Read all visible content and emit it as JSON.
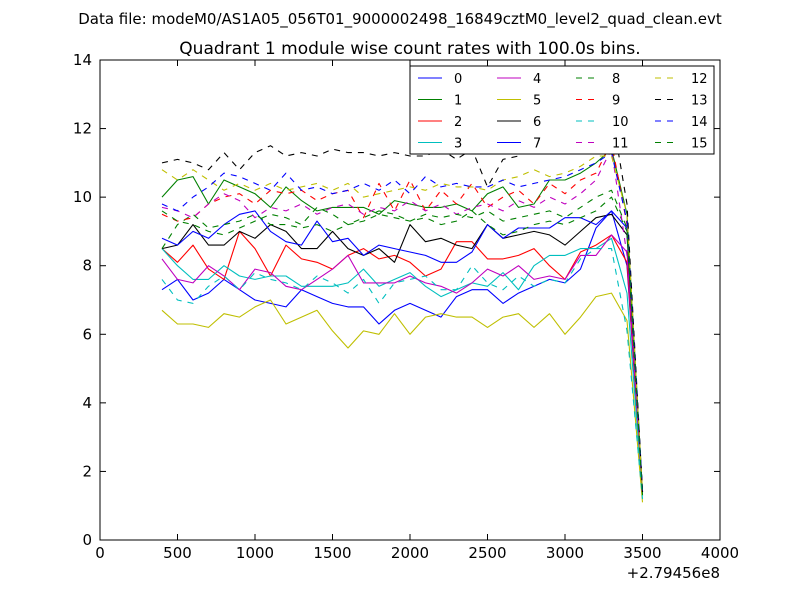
{
  "chart_data": {
    "type": "line",
    "suptitle": "Data file: modeM0/AS1A05_056T01_9000002498_16849cztM0_level2_quad_clean.evt",
    "title": "Quadrant 1 module wise count rates with 100.0s bins.",
    "xlabel": "",
    "ylabel": "",
    "x_offset_label": "+2.79456e8",
    "xlim": [
      0,
      4000
    ],
    "ylim": [
      0,
      14
    ],
    "xticks": [
      0,
      500,
      1000,
      1500,
      2000,
      2500,
      3000,
      3500,
      4000
    ],
    "yticks": [
      0,
      2,
      4,
      6,
      8,
      10,
      12,
      14
    ],
    "legend_position": "top-right",
    "x": [
      400,
      500,
      600,
      700,
      800,
      900,
      1000,
      1100,
      1200,
      1300,
      1400,
      1500,
      1600,
      1700,
      1800,
      1900,
      2000,
      2100,
      2200,
      2300,
      2400,
      2500,
      2600,
      2700,
      2800,
      2900,
      3000,
      3100,
      3200,
      3300,
      3400,
      3500
    ],
    "series": [
      {
        "name": "0",
        "color": "#0000ff",
        "dash": "solid",
        "values": [
          7.3,
          7.6,
          7.0,
          7.2,
          7.6,
          7.3,
          7.0,
          6.9,
          6.8,
          7.3,
          7.1,
          6.9,
          6.8,
          6.8,
          6.3,
          6.7,
          6.9,
          6.7,
          6.5,
          7.1,
          7.3,
          7.3,
          6.9,
          7.2,
          7.4,
          7.6,
          7.5,
          7.9,
          9.1,
          9.6,
          8.0,
          1.3
        ]
      },
      {
        "name": "1",
        "color": "#008000",
        "dash": "solid",
        "values": [
          10.0,
          10.5,
          10.6,
          9.8,
          10.5,
          10.3,
          10.1,
          9.7,
          10.3,
          9.9,
          9.6,
          9.7,
          9.7,
          9.7,
          9.5,
          9.9,
          9.8,
          9.7,
          9.7,
          9.8,
          9.6,
          10.1,
          10.3,
          9.7,
          9.8,
          10.5,
          10.5,
          10.7,
          11.0,
          11.4,
          9.5,
          1.4
        ]
      },
      {
        "name": "2",
        "color": "#ff0000",
        "dash": "solid",
        "values": [
          8.5,
          8.1,
          8.6,
          7.9,
          7.6,
          9.0,
          8.5,
          7.7,
          8.6,
          8.2,
          8.1,
          7.9,
          8.3,
          8.5,
          8.2,
          8.3,
          8.1,
          7.7,
          7.9,
          8.7,
          8.7,
          8.2,
          8.2,
          8.3,
          8.5,
          8.0,
          7.6,
          8.4,
          8.6,
          8.9,
          8.1,
          1.4
        ]
      },
      {
        "name": "3",
        "color": "#00bfbf",
        "dash": "solid",
        "values": [
          8.5,
          8.0,
          7.6,
          7.6,
          8.0,
          7.7,
          7.6,
          7.7,
          7.7,
          7.4,
          7.4,
          7.4,
          7.5,
          7.9,
          7.4,
          7.6,
          7.8,
          7.4,
          7.1,
          7.3,
          7.5,
          7.4,
          7.8,
          7.3,
          8.0,
          8.3,
          8.3,
          8.5,
          8.5,
          8.8,
          7.2,
          1.3
        ]
      },
      {
        "name": "4",
        "color": "#bf00bf",
        "dash": "solid",
        "values": [
          8.2,
          7.6,
          7.5,
          8.0,
          7.7,
          7.3,
          7.9,
          7.8,
          7.4,
          7.3,
          7.6,
          7.9,
          8.3,
          7.5,
          7.5,
          7.5,
          7.7,
          7.5,
          7.4,
          7.2,
          7.5,
          7.9,
          7.7,
          8.0,
          7.6,
          7.7,
          7.6,
          8.3,
          8.3,
          8.9,
          8.4,
          1.4
        ]
      },
      {
        "name": "5",
        "color": "#bfbf00",
        "dash": "solid",
        "values": [
          6.7,
          6.3,
          6.3,
          6.2,
          6.6,
          6.5,
          6.8,
          7.0,
          6.3,
          6.5,
          6.7,
          6.1,
          5.6,
          6.1,
          6.0,
          6.6,
          6.0,
          6.5,
          6.6,
          6.5,
          6.5,
          6.2,
          6.5,
          6.6,
          6.2,
          6.6,
          6.0,
          6.5,
          7.1,
          7.2,
          6.4,
          1.1
        ]
      },
      {
        "name": "6",
        "color": "#000000",
        "dash": "solid",
        "values": [
          8.5,
          8.6,
          9.2,
          8.6,
          8.6,
          9.0,
          8.8,
          9.2,
          9.0,
          8.5,
          8.5,
          9.0,
          8.5,
          8.3,
          8.5,
          8.1,
          9.2,
          8.7,
          8.8,
          8.6,
          8.5,
          9.2,
          8.8,
          8.9,
          9.0,
          8.9,
          8.6,
          9.0,
          9.4,
          9.5,
          8.9,
          1.4
        ]
      },
      {
        "name": "7",
        "color": "#0000ff",
        "dash": "solid",
        "values": [
          8.8,
          8.6,
          9.0,
          8.8,
          9.2,
          9.5,
          9.6,
          9.0,
          8.7,
          8.6,
          9.3,
          8.7,
          8.8,
          8.3,
          8.6,
          8.5,
          8.4,
          8.3,
          8.1,
          8.1,
          8.4,
          9.2,
          8.8,
          9.1,
          9.1,
          9.1,
          9.4,
          9.4,
          9.2,
          9.6,
          9.1,
          1.4
        ]
      },
      {
        "name": "8",
        "color": "#008000",
        "dash": "dashed",
        "values": [
          8.5,
          9.2,
          9.5,
          9.1,
          9.2,
          9.3,
          9.5,
          9.2,
          9.2,
          9.1,
          9.2,
          9.0,
          9.2,
          9.3,
          9.5,
          9.4,
          9.3,
          9.4,
          9.2,
          9.3,
          9.6,
          9.2,
          8.9,
          9.0,
          9.2,
          9.3,
          9.2,
          9.4,
          9.6,
          10.0,
          9.0,
          1.3
        ]
      },
      {
        "name": "9",
        "color": "#ff0000",
        "dash": "dashed",
        "values": [
          9.5,
          9.3,
          9.4,
          9.8,
          10.0,
          10.1,
          9.8,
          10.2,
          10.1,
          10.2,
          9.9,
          10.1,
          10.2,
          9.4,
          10.4,
          9.6,
          10.5,
          9.6,
          10.2,
          9.8,
          10.4,
          9.7,
          10.0,
          10.2,
          9.8,
          10.4,
          10.1,
          10.5,
          10.7,
          11.6,
          9.2,
          1.3
        ]
      },
      {
        "name": "10",
        "color": "#00bfbf",
        "dash": "dashed",
        "values": [
          7.6,
          7.0,
          6.9,
          7.4,
          7.7,
          7.3,
          7.8,
          7.6,
          7.5,
          7.3,
          7.7,
          7.5,
          7.2,
          7.6,
          6.9,
          7.5,
          7.6,
          7.7,
          7.3,
          7.3,
          8.0,
          7.5,
          7.3,
          7.7,
          7.4,
          7.6,
          7.5,
          8.2,
          8.5,
          8.5,
          6.1,
          1.2
        ]
      },
      {
        "name": "11",
        "color": "#bf00bf",
        "dash": "dashed",
        "values": [
          9.7,
          9.6,
          9.4,
          9.8,
          10.1,
          9.9,
          9.4,
          9.7,
          9.6,
          9.8,
          9.5,
          9.7,
          9.8,
          9.5,
          9.7,
          9.6,
          9.9,
          9.6,
          9.8,
          9.5,
          9.7,
          9.8,
          9.6,
          9.9,
          9.7,
          10.0,
          9.8,
          10.1,
          10.5,
          11.4,
          8.3,
          1.4
        ]
      },
      {
        "name": "12",
        "color": "#bfbf00",
        "dash": "dashed",
        "values": [
          10.8,
          10.5,
          10.8,
          10.5,
          10.2,
          10.4,
          10.2,
          10.4,
          10.2,
          10.3,
          10.4,
          10.2,
          10.4,
          10.0,
          10.1,
          10.2,
          10.3,
          10.2,
          10.4,
          10.3,
          10.3,
          10.2,
          10.5,
          10.6,
          10.8,
          10.6,
          10.7,
          10.9,
          11.2,
          11.2,
          9.5,
          1.4
        ]
      },
      {
        "name": "13",
        "color": "#000000",
        "dash": "dashed",
        "values": [
          11.0,
          11.1,
          11.0,
          10.8,
          11.3,
          10.8,
          11.3,
          11.5,
          11.2,
          11.3,
          11.2,
          11.4,
          11.3,
          11.3,
          11.2,
          11.3,
          11.2,
          11.2,
          11.4,
          11.1,
          11.4,
          10.3,
          11.1,
          11.2,
          11.5,
          11.4,
          11.5,
          11.8,
          12.1,
          12.5,
          9.8,
          1.4
        ]
      },
      {
        "name": "14",
        "color": "#0000ff",
        "dash": "dashed",
        "values": [
          9.8,
          9.6,
          10.0,
          10.3,
          10.7,
          10.6,
          10.4,
          10.2,
          10.7,
          10.2,
          10.3,
          10.1,
          10.2,
          10.4,
          10.2,
          10.5,
          10.1,
          10.6,
          10.3,
          10.4,
          10.3,
          10.3,
          10.5,
          10.3,
          10.4,
          10.5,
          10.6,
          10.8,
          11.0,
          11.3,
          9.3,
          1.4
        ]
      },
      {
        "name": "15",
        "color": "#008000",
        "dash": "dashed",
        "values": [
          9.6,
          9.3,
          9.2,
          9.0,
          8.9,
          9.1,
          9.3,
          9.5,
          9.4,
          9.2,
          9.7,
          9.5,
          9.2,
          9.4,
          9.6,
          9.5,
          9.3,
          9.5,
          9.4,
          9.5,
          9.4,
          9.6,
          9.3,
          9.4,
          9.5,
          9.6,
          9.4,
          9.7,
          10.0,
          10.2,
          9.1,
          1.3
        ]
      }
    ]
  }
}
